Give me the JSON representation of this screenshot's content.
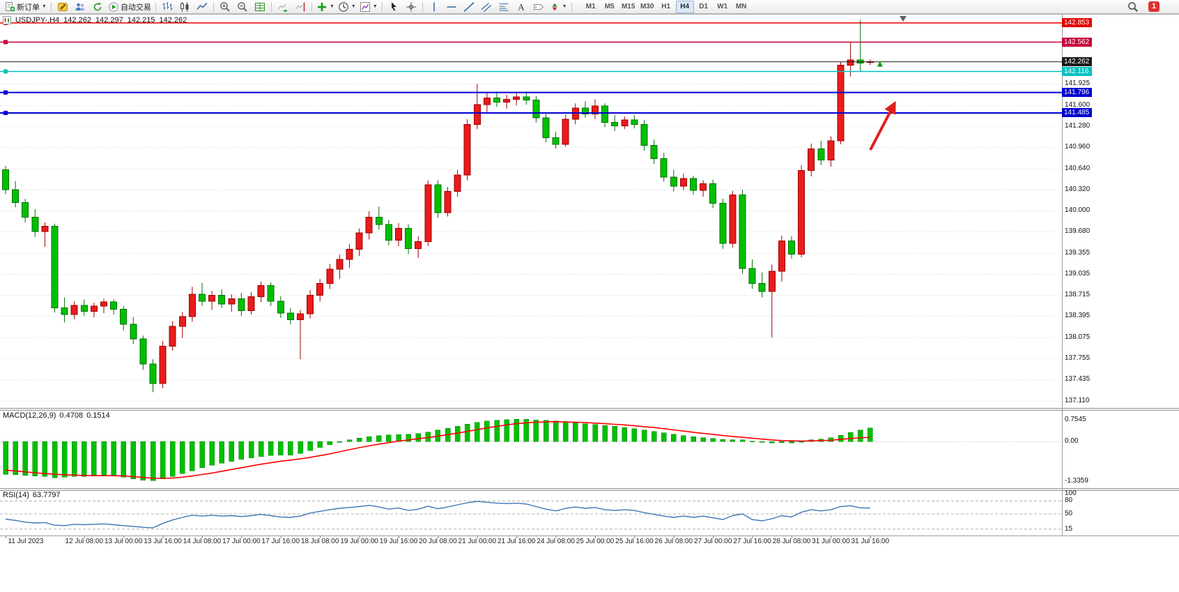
{
  "toolbar": {
    "new_order_label": "新订单",
    "auto_trading_label": "自动交易",
    "notification_count": "1",
    "timeframes": [
      "M1",
      "M5",
      "M15",
      "M30",
      "H1",
      "H4",
      "D1",
      "W1",
      "MN"
    ],
    "active_timeframe": "H4",
    "items": [
      {
        "name": "new-order",
        "icon": "doc-plus",
        "label_key": "new_order_label",
        "caret": true
      },
      {
        "divider": true
      },
      {
        "name": "new-chart",
        "icon": "hammer"
      },
      {
        "name": "profiles",
        "icon": "people"
      },
      {
        "name": "refresh",
        "icon": "refresh"
      },
      {
        "name": "auto-trading",
        "icon": "play",
        "label_key": "auto_trading_label"
      },
      {
        "divider": true
      },
      {
        "name": "bar-chart",
        "icon": "bars"
      },
      {
        "name": "candlestick-chart",
        "icon": "candles"
      },
      {
        "name": "line-chart",
        "icon": "line"
      },
      {
        "divider": true
      },
      {
        "name": "zoom-in",
        "icon": "zoom-in"
      },
      {
        "name": "zoom-out",
        "icon": "zoom-out"
      },
      {
        "name": "tile-windows",
        "icon": "grid"
      },
      {
        "divider": true
      },
      {
        "name": "auto-scroll",
        "icon": "chart-arrow"
      },
      {
        "name": "chart-shift",
        "icon": "chart-shift"
      },
      {
        "divider": true
      },
      {
        "name": "indicators",
        "icon": "plus-chart",
        "caret": true
      },
      {
        "name": "periods",
        "icon": "clock",
        "caret": true
      },
      {
        "name": "templates",
        "icon": "template",
        "caret": true
      },
      {
        "divider": true
      },
      {
        "name": "cursor",
        "icon": "cursor"
      },
      {
        "name": "crosshair",
        "icon": "crosshair"
      },
      {
        "divider": true
      },
      {
        "name": "vertical-line",
        "icon": "vline"
      },
      {
        "name": "horizontal-line",
        "icon": "hline"
      },
      {
        "name": "trendline",
        "icon": "trend"
      },
      {
        "name": "equidistant-channel",
        "icon": "channel"
      },
      {
        "name": "fibonacci-retracement",
        "icon": "fibo"
      },
      {
        "name": "text",
        "icon": "text"
      },
      {
        "name": "text-label",
        "icon": "label"
      },
      {
        "name": "arrows",
        "icon": "arrows",
        "caret": true
      },
      {
        "divider": true
      }
    ]
  },
  "chart_header": {
    "symbol_period": "USDJPY-.H4",
    "open": "142.262",
    "high": "142.297",
    "low": "142.215",
    "close": "142.262"
  },
  "price_axis": {
    "plain_ticks": [
      "141.925",
      "141.600",
      "141.280",
      "140.960",
      "140.640",
      "140.320",
      "140.000",
      "139.680",
      "139.355",
      "139.035",
      "138.715",
      "138.395",
      "138.075",
      "137.755",
      "137.435",
      "137.110"
    ],
    "current": {
      "price": 142.262,
      "label": "142.262",
      "color": "#1a1a1a"
    }
  },
  "time_axis": {
    "labels": [
      "11 Jul 2023",
      "12 Jul 08:00",
      "13 Jul 00:00",
      "13 Jul 16:00",
      "14 Jul 08:00",
      "17 Jul 00:00",
      "17 Jul 16:00",
      "18 Jul 08:00",
      "19 Jul 00:00",
      "19 Jul 16:00",
      "20 Jul 08:00",
      "21 Jul 00:00",
      "21 Jul 16:00",
      "24 Jul 08:00",
      "25 Jul 00:00",
      "25 Jul 16:00",
      "26 Jul 08:00",
      "27 Jul 00:00",
      "27 Jul 16:00",
      "28 Jul 08:00",
      "31 Jul 00:00",
      "31 Jul 16:00"
    ],
    "indices": [
      0,
      8,
      12,
      16,
      20,
      24,
      28,
      32,
      36,
      40,
      44,
      48,
      52,
      56,
      60,
      64,
      68,
      72,
      76,
      80,
      84,
      88
    ]
  },
  "indicators": {
    "macd": {
      "label": "MACD(12,26,9)",
      "value_main": "0.4708",
      "value_signal": "0.1514",
      "axis_labels": [
        "0.7545",
        "0.00",
        "-1.3359"
      ],
      "axis_values": [
        0.7545,
        0,
        -1.3359
      ],
      "hist_color": "#00c000",
      "signal_color": "#ff0000"
    },
    "rsi": {
      "label": "RSI(14)",
      "value": "63.7797",
      "axis_labels": [
        "100",
        "80",
        "50",
        "15"
      ],
      "axis_values": [
        100,
        80,
        50,
        15
      ],
      "levels": [
        80,
        50,
        15
      ],
      "line_color": "#3f76b8"
    }
  },
  "annotations": {
    "arrow_color": "#e02020",
    "last_tick_arrow_color": "#00a000"
  },
  "chart_data": {
    "type": "candlestick",
    "symbol": "USDJPY-",
    "timeframe": "H4",
    "up_color": "#e81c1c",
    "down_color": "#00c000",
    "ylim": [
      137.0,
      142.99
    ],
    "candles": [
      [
        140.62,
        140.68,
        140.25,
        140.32
      ],
      [
        140.32,
        140.45,
        140.05,
        140.12
      ],
      [
        140.12,
        140.18,
        139.82,
        139.9
      ],
      [
        139.9,
        140.02,
        139.6,
        139.68
      ],
      [
        139.68,
        139.82,
        139.45,
        139.76
      ],
      [
        139.76,
        139.8,
        138.45,
        138.52
      ],
      [
        138.52,
        138.68,
        138.3,
        138.42
      ],
      [
        138.42,
        138.62,
        138.35,
        138.56
      ],
      [
        138.56,
        138.65,
        138.4,
        138.47
      ],
      [
        138.47,
        138.6,
        138.38,
        138.55
      ],
      [
        138.55,
        138.66,
        138.44,
        138.61
      ],
      [
        138.61,
        138.65,
        138.42,
        138.5
      ],
      [
        138.5,
        138.55,
        138.18,
        138.27
      ],
      [
        138.27,
        138.38,
        137.97,
        138.05
      ],
      [
        138.05,
        138.1,
        137.58,
        137.67
      ],
      [
        137.67,
        137.74,
        137.24,
        137.37
      ],
      [
        137.37,
        138.02,
        137.3,
        137.94
      ],
      [
        137.94,
        138.32,
        137.87,
        138.24
      ],
      [
        138.24,
        138.46,
        138.06,
        138.39
      ],
      [
        138.39,
        138.84,
        138.31,
        138.73
      ],
      [
        138.73,
        138.9,
        138.55,
        138.62
      ],
      [
        138.62,
        138.78,
        138.49,
        138.71
      ],
      [
        138.71,
        138.8,
        138.52,
        138.58
      ],
      [
        138.58,
        138.73,
        138.46,
        138.66
      ],
      [
        138.66,
        138.75,
        138.4,
        138.48
      ],
      [
        138.48,
        138.76,
        138.42,
        138.69
      ],
      [
        138.69,
        138.92,
        138.61,
        138.86
      ],
      [
        138.86,
        138.91,
        138.55,
        138.62
      ],
      [
        138.62,
        138.7,
        138.37,
        138.44
      ],
      [
        138.44,
        138.52,
        138.27,
        138.34
      ],
      [
        138.34,
        138.49,
        137.74,
        138.43
      ],
      [
        138.43,
        138.79,
        138.36,
        138.71
      ],
      [
        138.71,
        138.96,
        138.62,
        138.89
      ],
      [
        138.89,
        139.19,
        138.81,
        139.11
      ],
      [
        139.11,
        139.33,
        138.96,
        139.26
      ],
      [
        139.26,
        139.49,
        139.13,
        139.41
      ],
      [
        139.41,
        139.73,
        139.31,
        139.66
      ],
      [
        139.66,
        139.99,
        139.56,
        139.9
      ],
      [
        139.9,
        140.06,
        139.71,
        139.79
      ],
      [
        139.79,
        139.86,
        139.47,
        139.55
      ],
      [
        139.55,
        139.81,
        139.46,
        139.73
      ],
      [
        139.73,
        139.79,
        139.34,
        139.42
      ],
      [
        139.42,
        139.61,
        139.28,
        139.53
      ],
      [
        139.53,
        140.46,
        139.46,
        140.39
      ],
      [
        140.39,
        140.46,
        139.89,
        139.97
      ],
      [
        139.97,
        140.36,
        139.91,
        140.29
      ],
      [
        140.29,
        140.62,
        140.21,
        140.54
      ],
      [
        140.54,
        141.39,
        140.46,
        141.31
      ],
      [
        141.31,
        141.93,
        141.24,
        141.61
      ],
      [
        141.61,
        141.79,
        141.49,
        141.71
      ],
      [
        141.71,
        141.81,
        141.58,
        141.65
      ],
      [
        141.65,
        141.76,
        141.55,
        141.69
      ],
      [
        141.69,
        141.79,
        141.6,
        141.73
      ],
      [
        141.73,
        141.81,
        141.61,
        141.68
      ],
      [
        141.68,
        141.74,
        141.34,
        141.41
      ],
      [
        141.41,
        141.47,
        141.04,
        141.11
      ],
      [
        141.11,
        141.2,
        140.94,
        141.01
      ],
      [
        141.01,
        141.46,
        140.97,
        141.39
      ],
      [
        141.39,
        141.63,
        141.31,
        141.56
      ],
      [
        141.56,
        141.66,
        141.41,
        141.47
      ],
      [
        141.47,
        141.69,
        141.39,
        141.59
      ],
      [
        141.59,
        141.63,
        141.27,
        141.34
      ],
      [
        141.34,
        141.45,
        141.21,
        141.29
      ],
      [
        141.29,
        141.43,
        141.24,
        141.38
      ],
      [
        141.38,
        141.45,
        141.25,
        141.31
      ],
      [
        141.31,
        141.38,
        140.91,
        140.99
      ],
      [
        140.99,
        141.08,
        140.71,
        140.79
      ],
      [
        140.79,
        140.88,
        140.44,
        140.51
      ],
      [
        140.51,
        140.62,
        140.29,
        140.37
      ],
      [
        140.37,
        140.56,
        140.31,
        140.49
      ],
      [
        140.49,
        140.53,
        140.24,
        140.31
      ],
      [
        140.31,
        140.46,
        140.21,
        140.41
      ],
      [
        140.41,
        140.47,
        140.04,
        140.11
      ],
      [
        140.11,
        140.18,
        139.42,
        139.5
      ],
      [
        139.5,
        140.3,
        139.44,
        140.24
      ],
      [
        140.24,
        140.32,
        139.04,
        139.12
      ],
      [
        139.12,
        139.26,
        138.81,
        138.89
      ],
      [
        138.89,
        139.06,
        138.68,
        138.77
      ],
      [
        138.77,
        139.18,
        138.07,
        139.08
      ],
      [
        139.08,
        139.62,
        138.92,
        139.54
      ],
      [
        139.54,
        139.61,
        139.27,
        139.34
      ],
      [
        139.34,
        140.69,
        139.29,
        140.61
      ],
      [
        140.61,
        141.02,
        140.52,
        140.94
      ],
      [
        140.94,
        141.06,
        140.69,
        140.77
      ],
      [
        140.77,
        141.13,
        140.67,
        141.06
      ],
      [
        141.06,
        142.26,
        141.01,
        142.21
      ],
      [
        142.21,
        142.56,
        142.04,
        142.29
      ],
      [
        142.29,
        142.9,
        142.11,
        142.24
      ],
      [
        142.262,
        142.297,
        142.215,
        142.262
      ]
    ],
    "hlines": [
      {
        "price": 142.853,
        "label": "142.853",
        "color": "#e60000",
        "width": 1.5
      },
      {
        "price": 142.562,
        "label": "142.562",
        "color": "#c8003c",
        "width": 1.5
      },
      {
        "price": 142.116,
        "label": "142.116",
        "color": "#00c2c2",
        "width": 1.5
      },
      {
        "price": 141.796,
        "label": "141.796",
        "color": "#0000d2",
        "width": 2
      },
      {
        "price": 141.485,
        "label": "141.485",
        "color": "#0000d2",
        "width": 2
      }
    ],
    "macd_hist": [
      -1.1,
      -1.12,
      -1.14,
      -1.16,
      -1.18,
      -1.22,
      -1.2,
      -1.18,
      -1.17,
      -1.16,
      -1.15,
      -1.16,
      -1.2,
      -1.26,
      -1.3,
      -1.32,
      -1.26,
      -1.18,
      -1.08,
      -0.98,
      -0.88,
      -0.8,
      -0.73,
      -0.67,
      -0.6,
      -0.55,
      -0.5,
      -0.47,
      -0.46,
      -0.45,
      -0.4,
      -0.3,
      -0.2,
      -0.1,
      -0.02,
      0.06,
      0.12,
      0.17,
      0.21,
      0.23,
      0.24,
      0.25,
      0.28,
      0.33,
      0.39,
      0.45,
      0.52,
      0.59,
      0.65,
      0.7,
      0.73,
      0.75,
      0.76,
      0.76,
      0.74,
      0.72,
      0.7,
      0.67,
      0.64,
      0.61,
      0.58,
      0.55,
      0.52,
      0.48,
      0.44,
      0.4,
      0.35,
      0.3,
      0.25,
      0.21,
      0.17,
      0.14,
      0.11,
      0.08,
      0.07,
      0.06,
      0.02,
      -0.02,
      -0.04,
      -0.03,
      -0.04,
      0.01,
      0.06,
      0.09,
      0.13,
      0.22,
      0.31,
      0.39,
      0.4708
    ],
    "macd_signal": [
      -0.96,
      -0.99,
      -1.02,
      -1.05,
      -1.08,
      -1.1,
      -1.12,
      -1.13,
      -1.14,
      -1.15,
      -1.15,
      -1.15,
      -1.16,
      -1.18,
      -1.21,
      -1.24,
      -1.24,
      -1.23,
      -1.2,
      -1.16,
      -1.11,
      -1.06,
      -1.0,
      -0.94,
      -0.88,
      -0.82,
      -0.76,
      -0.71,
      -0.66,
      -0.62,
      -0.58,
      -0.53,
      -0.47,
      -0.41,
      -0.34,
      -0.27,
      -0.2,
      -0.14,
      -0.08,
      -0.03,
      0.02,
      0.06,
      0.1,
      0.14,
      0.19,
      0.24,
      0.29,
      0.35,
      0.41,
      0.47,
      0.52,
      0.57,
      0.61,
      0.64,
      0.66,
      0.67,
      0.68,
      0.67,
      0.66,
      0.65,
      0.63,
      0.61,
      0.59,
      0.57,
      0.54,
      0.51,
      0.48,
      0.44,
      0.4,
      0.36,
      0.32,
      0.28,
      0.25,
      0.21,
      0.18,
      0.15,
      0.12,
      0.09,
      0.06,
      0.04,
      0.03,
      0.02,
      0.03,
      0.04,
      0.05,
      0.08,
      0.11,
      0.13,
      0.1514
    ],
    "rsi_values": [
      38,
      35,
      31,
      29,
      30,
      24,
      23,
      26,
      25,
      26,
      27,
      25,
      23,
      21,
      19,
      18,
      28,
      36,
      42,
      47,
      45,
      47,
      45,
      46,
      44,
      46,
      49,
      46,
      43,
      42,
      45,
      52,
      56,
      60,
      63,
      65,
      67,
      70,
      66,
      61,
      64,
      58,
      61,
      68,
      62,
      66,
      71,
      76,
      79,
      77,
      75,
      74,
      75,
      73,
      67,
      61,
      57,
      63,
      66,
      63,
      65,
      60,
      58,
      60,
      58,
      53,
      49,
      45,
      42,
      45,
      42,
      45,
      41,
      37,
      46,
      50,
      37,
      34,
      39,
      46,
      43,
      54,
      60,
      57,
      60,
      67,
      69,
      64,
      63.7797
    ]
  }
}
